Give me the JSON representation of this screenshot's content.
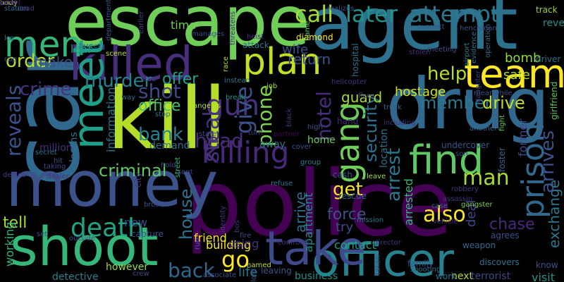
{
  "words": [
    {
      "text": "kill",
      "color": "#b5de2b"
    },
    {
      "text": "police",
      "color": "#440154"
    },
    {
      "text": "agent",
      "color": "#2c728e"
    },
    {
      "text": "escape",
      "color": "#6ece58"
    },
    {
      "text": "car",
      "color": "#31688e"
    },
    {
      "text": "drug",
      "color": "#31688e"
    },
    {
      "text": "money",
      "color": "#3b528b"
    },
    {
      "text": "shoot",
      "color": "#35b779"
    },
    {
      "text": "officer",
      "color": "#26828e"
    },
    {
      "text": "take",
      "color": "#3e4989"
    },
    {
      "text": "killed",
      "color": "#472d7b"
    },
    {
      "text": "team",
      "color": "#fde725"
    },
    {
      "text": "find",
      "color": "#5ec962"
    },
    {
      "text": "meet",
      "color": "#1f9e89"
    },
    {
      "text": "gang",
      "color": "#6ece58"
    },
    {
      "text": "plan",
      "color": "#c2df23"
    },
    {
      "text": "men",
      "color": "#35b779"
    },
    {
      "text": "killing",
      "color": "#482878"
    },
    {
      "text": "prison",
      "color": "#31688e"
    },
    {
      "text": "death",
      "color": "#20a486"
    },
    {
      "text": "gun",
      "color": "#46327e"
    },
    {
      "text": "call",
      "color": "#a5db36"
    },
    {
      "text": "later",
      "color": "#21918c"
    },
    {
      "text": "attempt",
      "color": "#2a788e"
    },
    {
      "text": "order",
      "color": "#b5de2b"
    },
    {
      "text": "crime",
      "color": "#46327e"
    },
    {
      "text": "reveals",
      "color": "#3b528b"
    },
    {
      "text": "murder",
      "color": "#26828e"
    },
    {
      "text": "shot",
      "color": "#3e4989"
    },
    {
      "text": "offer",
      "color": "#1fa187"
    },
    {
      "text": "office",
      "color": "#4ac16d"
    },
    {
      "text": "bank",
      "color": "#26828e"
    },
    {
      "text": "head",
      "color": "#472d7b"
    },
    {
      "text": "criminal",
      "color": "#5ec962"
    },
    {
      "text": "help",
      "color": "#b5de2b"
    },
    {
      "text": "member",
      "color": "#2a788e"
    },
    {
      "text": "drive",
      "color": "#c2df23"
    },
    {
      "text": "man",
      "color": "#a5db36"
    },
    {
      "text": "get",
      "color": "#fde725"
    },
    {
      "text": "force",
      "color": "#3b528b"
    },
    {
      "text": "also",
      "color": "#fde725"
    },
    {
      "text": "chase",
      "color": "#482878"
    },
    {
      "text": "go",
      "color": "#fde725"
    },
    {
      "text": "back",
      "color": "#31688e"
    },
    {
      "text": "tell",
      "color": "#a5db36"
    },
    {
      "text": "house",
      "color": "#2c728e"
    },
    {
      "text": "steal",
      "color": "#46327e"
    },
    {
      "text": "give",
      "color": "#3b528b"
    },
    {
      "text": "phone",
      "color": "#7ad151"
    },
    {
      "text": "return",
      "color": "#39568c"
    },
    {
      "text": "hotel",
      "color": "#472d7b"
    },
    {
      "text": "security",
      "color": "#2c728e"
    },
    {
      "text": "arrest",
      "color": "#2a788e"
    },
    {
      "text": "guard",
      "color": "#a5db36"
    },
    {
      "text": "hostage",
      "color": "#d2e21b"
    },
    {
      "text": "safe",
      "color": "#b5de2b"
    },
    {
      "text": "bomb",
      "color": "#90d743"
    },
    {
      "text": "wife",
      "color": "#3b528b"
    },
    {
      "text": "make",
      "color": "#3b528b"
    },
    {
      "text": "leaf",
      "color": "#1f9e89"
    },
    {
      "text": "time",
      "color": "#6ece58"
    },
    {
      "text": "life",
      "color": "#2a788e"
    },
    {
      "text": "arrive",
      "color": "#2c728e"
    },
    {
      "text": "apartment",
      "color": "#21918c"
    },
    {
      "text": "try",
      "color": "#3e4989"
    },
    {
      "text": "contact",
      "color": "#1fa187"
    },
    {
      "text": "building",
      "color": "#fde725"
    },
    {
      "text": "new",
      "color": "#3e4989"
    },
    {
      "text": "exchange",
      "color": "#2a788e"
    },
    {
      "text": "arrives",
      "color": "#3b528b"
    },
    {
      "text": "former",
      "color": "#3e4989"
    },
    {
      "text": "visit",
      "color": "#21918c"
    },
    {
      "text": "deal",
      "color": "#3e4989"
    },
    {
      "text": "arrested",
      "color": "#35b779"
    },
    {
      "text": "location",
      "color": "#2c728e"
    },
    {
      "text": "detective",
      "color": "#26828e"
    },
    {
      "text": "however",
      "color": "#9bd93c"
    },
    {
      "text": "business",
      "color": "#21918c"
    },
    {
      "text": "next",
      "color": "#b5de2b"
    },
    {
      "text": "terrorist",
      "color": "#3e4989"
    },
    {
      "text": "information",
      "color": "#2c728e"
    },
    {
      "text": "demand",
      "color": "#2c728e"
    },
    {
      "text": "away",
      "color": "#2a788e"
    },
    {
      "text": "home",
      "color": "#6ece58"
    },
    {
      "text": "friend",
      "color": "#fde725"
    },
    {
      "text": "using",
      "color": "#46327e"
    },
    {
      "text": "million",
      "color": "#472d7b"
    },
    {
      "text": "working",
      "color": "#35b779"
    },
    {
      "text": "learns",
      "color": "#2c728e"
    },
    {
      "text": "target",
      "color": "#2c728e"
    },
    {
      "text": "diamond",
      "color": "#fde725"
    },
    {
      "text": "hospital",
      "color": "#2c728e"
    },
    {
      "text": "stolen",
      "color": "#472d7b"
    },
    {
      "text": "meeting",
      "color": "#3b528b"
    },
    {
      "text": "operation",
      "color": "#31688e"
    },
    {
      "text": "driver",
      "color": "#2c728e"
    },
    {
      "text": "airport",
      "color": "#2a788e"
    },
    {
      "text": "evidence",
      "color": "#2c728e"
    },
    {
      "text": "suspect",
      "color": "#3b528b"
    },
    {
      "text": "henchman",
      "color": "#3b528b"
    },
    {
      "text": "revealed",
      "color": "#21918c"
    },
    {
      "text": "track",
      "color": "#9bd93c"
    },
    {
      "text": "dead",
      "color": "#46327e"
    },
    {
      "text": "station",
      "color": "#31688e"
    },
    {
      "text": "department",
      "color": "#3b528b"
    },
    {
      "text": "manages",
      "color": "#3e4989"
    },
    {
      "text": "threatens",
      "color": "#46327e"
    },
    {
      "text": "name",
      "color": "#5ec962"
    },
    {
      "text": "realizes",
      "color": "#39568c"
    },
    {
      "text": "earlier",
      "color": "#433e85"
    },
    {
      "text": "heist",
      "color": "#472d7b"
    },
    {
      "text": "attack",
      "color": "#2a788e"
    },
    {
      "text": "race",
      "color": "#b5de2b"
    },
    {
      "text": "job",
      "color": "#a5db36"
    },
    {
      "text": "helicopter",
      "color": "#46327e"
    },
    {
      "text": "instead",
      "color": "#2a788e"
    },
    {
      "text": "angeles",
      "color": "#b5de2b"
    },
    {
      "text": "break",
      "color": "#21918c"
    },
    {
      "text": "los",
      "color": "#2c728e"
    },
    {
      "text": "cop",
      "color": "#3b528b"
    },
    {
      "text": "scene",
      "color": "#b5de2b"
    },
    {
      "text": "stop",
      "color": "#2c728e"
    },
    {
      "text": "lead",
      "color": "#433e85"
    },
    {
      "text": "way",
      "color": "#31688e"
    },
    {
      "text": "state",
      "color": "#3e4989"
    },
    {
      "text": "turn",
      "color": "#433e85"
    },
    {
      "text": "partner",
      "color": "#440154"
    },
    {
      "text": "cover",
      "color": "#3b528b"
    },
    {
      "text": "high",
      "color": "#39568c"
    },
    {
      "text": "hand",
      "color": "#472d7b"
    },
    {
      "text": "black",
      "color": "#46327e"
    },
    {
      "text": "truck",
      "color": "#31688e"
    },
    {
      "text": "including",
      "color": "#46327e"
    },
    {
      "text": "flees",
      "color": "#433e85"
    },
    {
      "text": "several",
      "color": "#2a788e"
    },
    {
      "text": "another",
      "color": "#31688e"
    },
    {
      "text": "undercover",
      "color": "#39568c"
    },
    {
      "text": "son",
      "color": "#3e4989"
    },
    {
      "text": "fight",
      "color": "#5ec962"
    },
    {
      "text": "girlfriend",
      "color": "#5ec962"
    },
    {
      "text": "daughter",
      "color": "#433e85"
    },
    {
      "text": "meanwhile",
      "color": "#3b528b"
    },
    {
      "text": "hold",
      "color": "#3e4989"
    },
    {
      "text": "sent",
      "color": "#3e4989"
    },
    {
      "text": "street",
      "color": "#35b779"
    },
    {
      "text": "dealer",
      "color": "#46327e"
    },
    {
      "text": "device",
      "color": "#433e85"
    },
    {
      "text": "secret",
      "color": "#2c728e"
    },
    {
      "text": "taking",
      "color": "#3e4989"
    },
    {
      "text": "hit",
      "color": "#3b528b"
    },
    {
      "text": "refuse",
      "color": "#2a788e"
    },
    {
      "text": "group",
      "color": "#26828e"
    },
    {
      "text": "cash",
      "color": "#3b528b"
    },
    {
      "text": "leave",
      "color": "#a5db36"
    },
    {
      "text": "rescue",
      "color": "#31688e"
    },
    {
      "text": "case",
      "color": "#2c728e"
    },
    {
      "text": "gangster",
      "color": "#7ad151"
    },
    {
      "text": "robbery",
      "color": "#46327e"
    },
    {
      "text": "foster",
      "color": "#31688e"
    },
    {
      "text": "assassin",
      "color": "#46327e"
    },
    {
      "text": "vehicle",
      "color": "#46327e"
    },
    {
      "text": "agrees",
      "color": "#3b528b"
    },
    {
      "text": "weapon",
      "color": "#31688e"
    },
    {
      "text": "know",
      "color": "#3b528b"
    },
    {
      "text": "discovers",
      "color": "#2c728e"
    },
    {
      "text": "work",
      "color": "#2c728e"
    },
    {
      "text": "family",
      "color": "#3b528b"
    },
    {
      "text": "shooting",
      "color": "#2c728e"
    },
    {
      "text": "brother",
      "color": "#3b528b"
    },
    {
      "text": "city",
      "color": "#46327e"
    },
    {
      "text": "set",
      "color": "#3e4989"
    },
    {
      "text": "outside",
      "color": "#3b528b"
    },
    {
      "text": "capture",
      "color": "#3b528b"
    },
    {
      "text": "crew",
      "color": "#3e4989"
    },
    {
      "text": "associate",
      "color": "#3b528b"
    },
    {
      "text": "run",
      "color": "#31688e"
    },
    {
      "text": "identity",
      "color": "#46327e"
    },
    {
      "text": "bos",
      "color": "#46327e"
    },
    {
      "text": "fire",
      "color": "#3e4989"
    },
    {
      "text": "leaving",
      "color": "#3b528b"
    },
    {
      "text": "confronts",
      "color": "#46327e"
    },
    {
      "text": "lord",
      "color": "#3b528b"
    },
    {
      "text": "named",
      "color": "#c2df23"
    },
    {
      "text": "mission",
      "color": "#2c728e"
    },
    {
      "text": "director",
      "color": "#46327e"
    },
    {
      "text": "taken",
      "color": "#3e4989"
    },
    {
      "text": "body",
      "color": "#fde725"
    },
    {
      "text": "local",
      "color": "#3b528b"
    },
    {
      "text": "cartel",
      "color": "#472d7b"
    }
  ]
}
